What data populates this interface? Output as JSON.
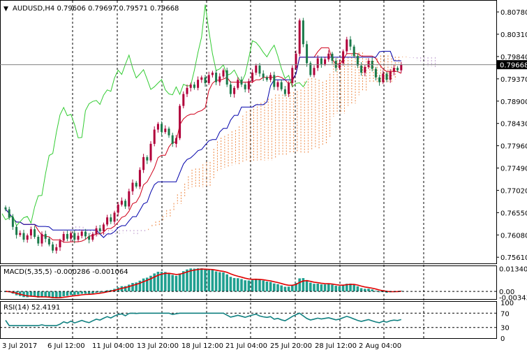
{
  "header": {
    "arrow": "▼",
    "title": "AUDUSD,H4  0.79606 0.79697 0.79571 0.79668"
  },
  "macd_header": "MACD(5,35,5) -0.000286 -0.001064",
  "rsi_header": "RSI(14) 52.4191",
  "colors": {
    "bull": "#b0003a",
    "bear": "#1a7a4a",
    "tenkan": "#d0001a",
    "kijun": "#0000aa",
    "chikou": "#33cc33",
    "cloud": "#ee8844",
    "cloud_b": "#c0a0d0",
    "macd_hist": "#20a090",
    "macd_signal": "#e00000",
    "rsi": "#108080",
    "price_box": "#000000"
  },
  "chart_data": {
    "type": "candlestick",
    "price_axis": {
      "range": [
        0.7551,
        0.8084
      ],
      "ticks": [
        "0.80780",
        "0.80310",
        "0.79840",
        "0.79370",
        "0.78900",
        "0.78430",
        "0.77960",
        "0.77490",
        "0.77020",
        "0.76550",
        "0.76080",
        "0.75610"
      ],
      "current_price": "0.79668"
    },
    "macd_axis": {
      "ticks": [
        "0.013406",
        "0.00",
        "-0.003435"
      ],
      "range": [
        -0.0045,
        0.0145
      ]
    },
    "rsi_axis": {
      "ticks": [
        "100",
        "70",
        "30",
        "0"
      ],
      "range": [
        0,
        100
      ],
      "levels": [
        70,
        30
      ]
    },
    "time_labels": [
      "3 Jul 2017",
      "6 Jul 12:00",
      "11 Jul 04:00",
      "13 Jul 20:00",
      "18 Jul 12:00",
      "21 Jul 04:00",
      "25 Jul 20:00",
      "28 Jul 12:00",
      "2 Aug 04:00"
    ],
    "closes": [
      0.7662,
      0.7645,
      0.7625,
      0.7608,
      0.7612,
      0.7598,
      0.7607,
      0.762,
      0.7604,
      0.759,
      0.761,
      0.76,
      0.7588,
      0.7575,
      0.7582,
      0.7596,
      0.761,
      0.76,
      0.7612,
      0.7598,
      0.7606,
      0.7615,
      0.7605,
      0.7598,
      0.761,
      0.7622,
      0.7616,
      0.763,
      0.7645,
      0.7636,
      0.7655,
      0.7672,
      0.768,
      0.7668,
      0.77,
      0.7718,
      0.771,
      0.7745,
      0.7772,
      0.7765,
      0.78,
      0.783,
      0.7842,
      0.7825,
      0.7832,
      0.7818,
      0.78,
      0.7812,
      0.788,
      0.7905,
      0.7918,
      0.7925,
      0.7918,
      0.7935,
      0.794,
      0.7928,
      0.7945,
      0.795,
      0.793,
      0.7942,
      0.7955,
      0.7925,
      0.7905,
      0.7918,
      0.7935,
      0.7925,
      0.7915,
      0.7932,
      0.795,
      0.7965,
      0.7948,
      0.794,
      0.7935,
      0.7945,
      0.792,
      0.793,
      0.7915,
      0.7905,
      0.7928,
      0.796,
      0.799,
      0.806,
      0.801,
      0.797,
      0.7945,
      0.796,
      0.798,
      0.7968,
      0.7978,
      0.799,
      0.7975,
      0.796,
      0.797,
      0.7995,
      0.802,
      0.8005,
      0.7985,
      0.7965,
      0.795,
      0.7962,
      0.7975,
      0.7958,
      0.794,
      0.793,
      0.7948,
      0.7935,
      0.7952,
      0.796,
      0.7955,
      0.7967
    ]
  }
}
